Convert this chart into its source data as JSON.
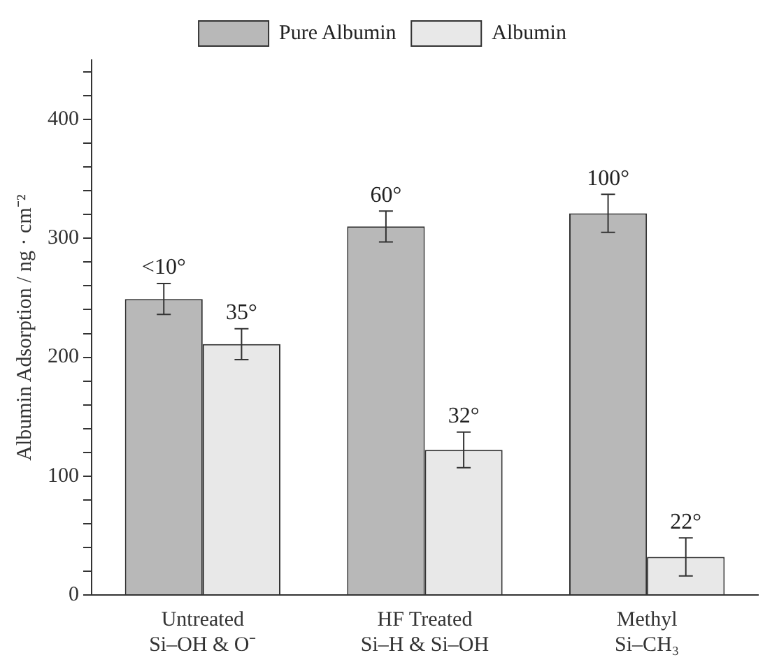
{
  "chart_data": {
    "type": "bar",
    "ylabel": "Albumin Adsorption / ng · cm⁻²",
    "categories": [
      "Untreated\nSi–OH & O⁻",
      "HF Treated\nSi–H & Si–OH",
      "Methyl\nSi–CH₃"
    ],
    "series": [
      {
        "name": "Pure Albumin",
        "color": "#b8b8b8",
        "values": [
          249,
          310,
          321
        ],
        "errors": [
          13,
          13,
          16
        ]
      },
      {
        "name": "Albumin",
        "color": "#e8e8e8",
        "values": [
          211,
          122,
          32
        ],
        "errors": [
          13,
          15,
          16
        ]
      }
    ],
    "annotations": [
      {
        "text": "<10°",
        "x": "Untreated\nSi–OH & O⁻",
        "y": 249
      },
      {
        "text": "35°",
        "x": "Untreated\nSi–OH & O⁻",
        "y": 211
      },
      {
        "text": "60°",
        "x": "HF Treated\nSi–H & Si–OH",
        "y": 310
      },
      {
        "text": "32°",
        "x": "HF Treated\nSi–H & Si–OH",
        "y": 122
      },
      {
        "text": "100°",
        "x": "Methyl\nSi–CH₃",
        "y": 321
      },
      {
        "text": "22°",
        "x": "Methyl\nSi–CH₃",
        "y": 32
      }
    ],
    "ylim": [
      0,
      450
    ],
    "yticks": [
      0,
      {
        "value": 20,
        "label": null
      },
      {
        "value": 40,
        "label": null
      },
      {
        "value": 60,
        "label": null
      },
      {
        "value": 80,
        "label": null
      },
      100,
      {
        "value": 120,
        "label": null
      },
      {
        "value": 140,
        "label": null
      },
      {
        "value": 160,
        "label": null
      },
      {
        "value": 180,
        "label": null
      },
      200,
      {
        "value": 220,
        "label": null
      },
      {
        "value": 240,
        "label": null
      },
      {
        "value": 260,
        "label": null
      },
      {
        "value": 280,
        "label": null
      },
      300,
      {
        "value": 320,
        "label": null
      },
      {
        "value": 340,
        "label": null
      },
      {
        "value": 360,
        "label": null
      },
      {
        "value": 380,
        "label": null
      },
      400,
      {
        "value": 420,
        "label": null
      },
      {
        "value": 440,
        "label": null
      }
    ],
    "grid": false,
    "legend": "top"
  }
}
